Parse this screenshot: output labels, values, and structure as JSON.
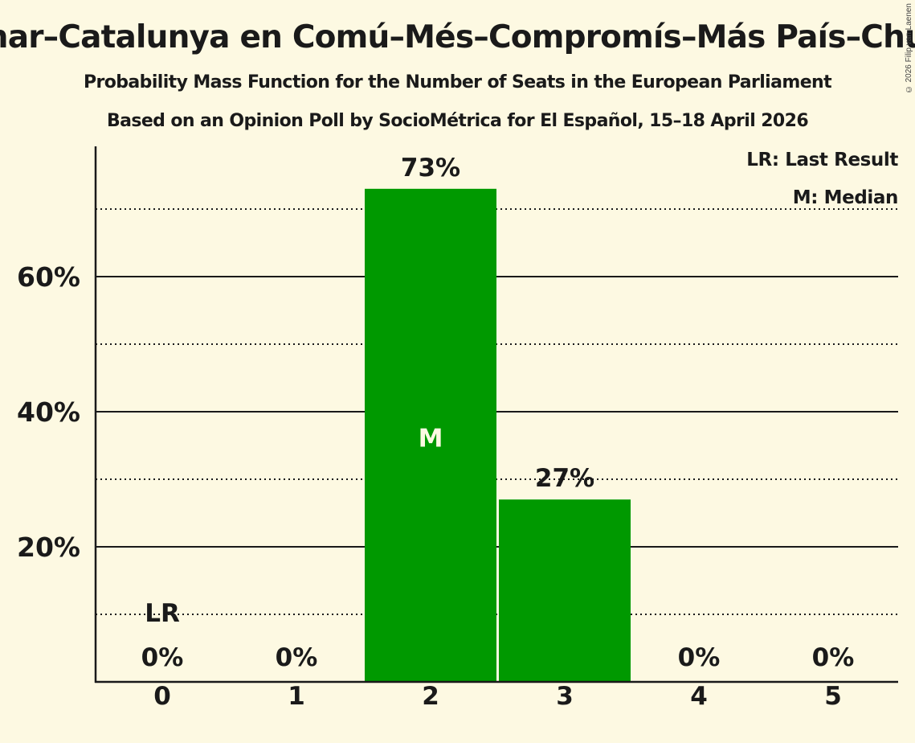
{
  "header": {
    "title": "Sumar–Catalunya en Comú–Més–Compromís–Más País–Chunta",
    "subtitle": "Probability Mass Function for the Number of Seats in the European Parliament",
    "source": "Based on an Opinion Poll by SocioMétrica for El Español, 15–18 April 2026",
    "copyright": "© 2026 Filip van Laenen"
  },
  "legend": {
    "lr": "LR: Last Result",
    "m": "M: Median"
  },
  "colors": {
    "background": "#fdf9e2",
    "bar": "#009900",
    "text": "#1a1a1a",
    "median_label": "#fdf9e2"
  },
  "chart_data": {
    "type": "bar",
    "title": "Probability Mass Function for the Number of Seats in the European Parliament",
    "subtitle": "Based on an Opinion Poll by SocioMétrica for El Español, 15–18 April 2026",
    "xlabel": "",
    "ylabel": "",
    "categories": [
      "0",
      "1",
      "2",
      "3",
      "4",
      "5"
    ],
    "values": [
      0,
      0,
      73,
      27,
      0,
      0
    ],
    "value_labels": [
      "0%",
      "0%",
      "73%",
      "27%",
      "0%",
      "0%"
    ],
    "ylim": [
      0,
      79
    ],
    "yticks": [
      20,
      40,
      60
    ],
    "ytick_labels": [
      "20%",
      "40%",
      "60%"
    ],
    "minor_gridlines": [
      10,
      30,
      50,
      70
    ],
    "grid": true,
    "last_result_seat": 0,
    "last_result_label": "LR",
    "median_seat": 2,
    "median_label": "M",
    "legend_position": "top-right"
  }
}
